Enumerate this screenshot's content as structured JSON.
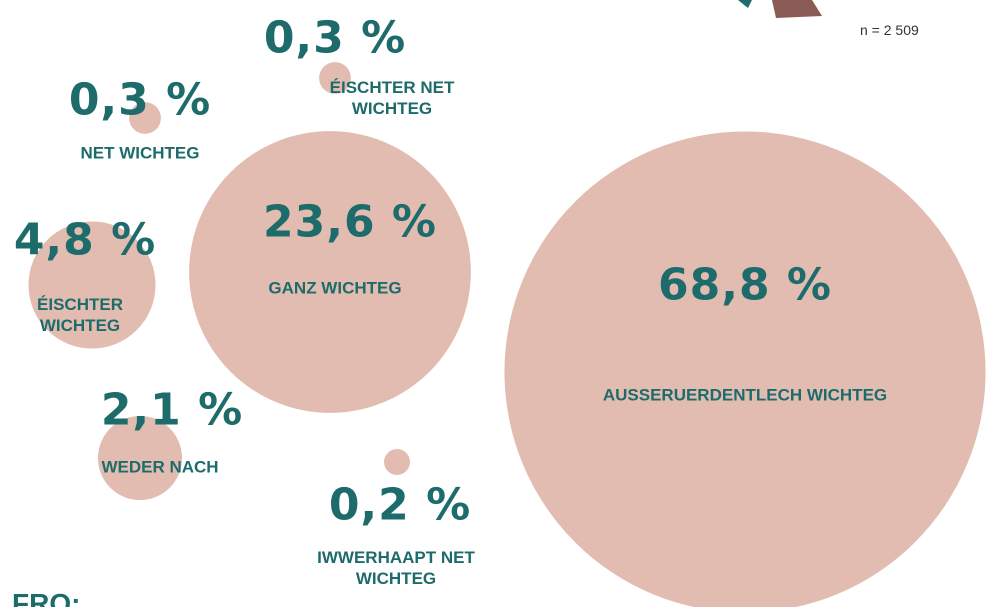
{
  "chart_data": {
    "type": "bubble",
    "categories": [
      "AUSSERUERDENTLECH WICHTEG",
      "GANZ WICHTEG",
      "WEDER NACH",
      "ÉISCHTER WICHTEG",
      "ÉISCHTER NET WICHTEG",
      "NET WICHTEG",
      "IWWERHAAPT NET WICHTEG"
    ],
    "values": [
      68.8,
      23.6,
      2.1,
      4.8,
      0.3,
      0.3,
      0.2
    ],
    "value_labels": [
      "68,8 %",
      "23,6 %",
      "2,1 %",
      "4,8 %",
      "0,3 %",
      "0,3 %",
      "0,2 %"
    ],
    "color": "#e2bcb0",
    "annotation": "n = 2 509",
    "footer_label": "FRO:"
  }
}
